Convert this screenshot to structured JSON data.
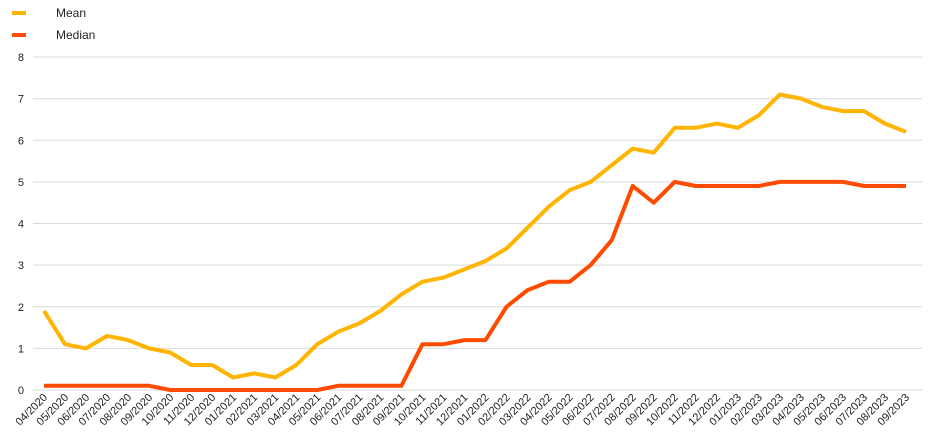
{
  "legend": {
    "mean_label": "Mean",
    "median_label": "Median"
  },
  "chart_data": {
    "type": "line",
    "title": "",
    "xlabel": "",
    "ylabel": "",
    "ylim": [
      0,
      8
    ],
    "yticks": [
      0,
      1,
      2,
      3,
      4,
      5,
      6,
      7,
      8
    ],
    "grid": true,
    "legend_position": "top-left",
    "x": [
      "04/2020",
      "05/2020",
      "06/2020",
      "07/2020",
      "08/2020",
      "09/2020",
      "10/2020",
      "11/2020",
      "12/2020",
      "01/2021",
      "02/2021",
      "03/2021",
      "04/2021",
      "05/2021",
      "06/2021",
      "07/2021",
      "08/2021",
      "09/2021",
      "10/2021",
      "11/2021",
      "12/2021",
      "01/2022",
      "02/2022",
      "03/2022",
      "04/2022",
      "05/2022",
      "06/2022",
      "07/2022",
      "08/2022",
      "09/2022",
      "10/2022",
      "11/2022",
      "12/2022",
      "01/2023",
      "02/2023",
      "03/2023",
      "04/2023",
      "05/2023",
      "06/2023",
      "07/2023",
      "08/2023",
      "09/2023"
    ],
    "series": [
      {
        "name": "Mean",
        "color": "#FFB400",
        "values": [
          1.9,
          1.1,
          1.0,
          1.3,
          1.2,
          1.0,
          0.9,
          0.6,
          0.6,
          0.3,
          0.4,
          0.3,
          0.6,
          1.1,
          1.4,
          1.6,
          1.9,
          2.3,
          2.6,
          2.7,
          2.9,
          3.1,
          3.4,
          3.9,
          4.4,
          4.8,
          5.0,
          5.4,
          5.8,
          5.7,
          6.3,
          6.3,
          6.4,
          6.3,
          6.6,
          7.1,
          7.0,
          6.8,
          6.7,
          6.7,
          6.4,
          6.2
        ]
      },
      {
        "name": "Median",
        "color": "#FF4B00",
        "values": [
          0.1,
          0.1,
          0.1,
          0.1,
          0.1,
          0.1,
          0.0,
          0.0,
          0.0,
          0.0,
          0.0,
          0.0,
          0.0,
          0.0,
          0.1,
          0.1,
          0.1,
          0.1,
          1.1,
          1.1,
          1.2,
          1.2,
          2.0,
          2.4,
          2.6,
          2.6,
          3.0,
          3.6,
          4.9,
          4.5,
          5.0,
          4.9,
          4.9,
          4.9,
          4.9,
          5.0,
          5.0,
          5.0,
          5.0,
          4.9,
          4.9,
          4.9
        ]
      }
    ]
  }
}
